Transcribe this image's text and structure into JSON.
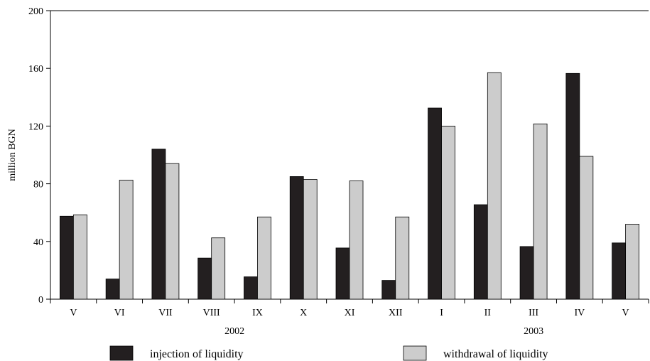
{
  "chart_data": {
    "type": "bar",
    "ylabel": "million BGN",
    "ylim": [
      0,
      200
    ],
    "yticks": [
      0,
      40,
      80,
      120,
      160,
      200
    ],
    "categories": [
      "V",
      "VI",
      "VII",
      "VIII",
      "IX",
      "X",
      "XI",
      "XII",
      "I",
      "II",
      "III",
      "IV",
      "V"
    ],
    "year_labels": [
      {
        "label": "2002",
        "category_range": [
          0,
          7
        ]
      },
      {
        "label": "2003",
        "category_range": [
          8,
          12
        ]
      }
    ],
    "series": [
      {
        "name": "injection of liquidity",
        "color": "#231f20",
        "values": [
          57.5,
          14,
          104,
          28.5,
          15.5,
          85,
          35.5,
          13,
          132.5,
          65.5,
          36.5,
          156.5,
          39
        ]
      },
      {
        "name": "withdrawal of liquidity",
        "color": "#cccccc",
        "values": [
          58.5,
          82.5,
          94,
          42.5,
          57,
          83,
          82,
          57,
          120,
          157,
          121.5,
          99,
          52
        ]
      }
    ],
    "grid": false,
    "legend_position": "bottom"
  }
}
